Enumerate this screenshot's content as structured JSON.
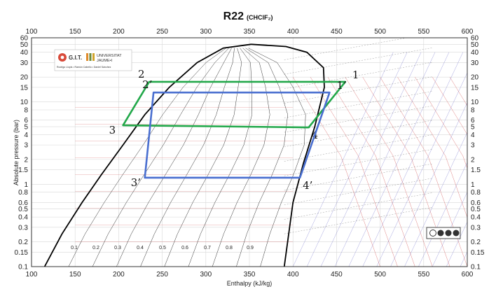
{
  "chart_data": {
    "type": "line",
    "title": "R22",
    "subtitle": "(CHClF₂)",
    "xlabel": "Enthalpy (kJ/kg)",
    "ylabel": "Absolute pressure (bar)",
    "xlim": [
      100,
      600
    ],
    "ylim": [
      0.1,
      60
    ],
    "yscale": "log",
    "grid": true,
    "x_ticks": [
      100,
      150,
      200,
      250,
      300,
      350,
      400,
      450,
      500,
      550,
      600
    ],
    "y_ticks": [
      0.1,
      0.15,
      0.2,
      0.3,
      0.4,
      0.5,
      0.6,
      0.8,
      1,
      1.5,
      2,
      3,
      4,
      5,
      6,
      8,
      10,
      15,
      20,
      30,
      40,
      50,
      60
    ],
    "y_tick_labels": [
      "0.1",
      "0.15",
      "0.2",
      "0.3",
      "0.4",
      "0.5",
      "0.6",
      "0.8",
      "1",
      "1.5",
      "2",
      "3",
      "4",
      "5",
      "6",
      "8",
      "10",
      "15",
      "20",
      "30",
      "40",
      "50",
      "60"
    ],
    "quality_labels": [
      "0.1",
      "0.2",
      "0.3",
      "0.4",
      "0.5",
      "0.6",
      "0.7",
      "0.8",
      "0.9"
    ],
    "series": [
      {
        "name": "",
        "color": "#22a84a",
        "closed": true,
        "points": [
          {
            "label": "1",
            "x": 460,
            "y": 17.5
          },
          {
            "label": "2",
            "x": 235,
            "y": 17.5
          },
          {
            "label": "3",
            "x": 205,
            "y": 5.2
          },
          {
            "label": "4",
            "x": 418,
            "y": 4.9
          }
        ]
      },
      {
        "name": "",
        "color": "#4a6fd0",
        "closed": true,
        "points": [
          {
            "label": "1’",
            "x": 442,
            "y": 13
          },
          {
            "label": "2’",
            "x": 240,
            "y": 13
          },
          {
            "label": "3’",
            "x": 230,
            "y": 1.2
          },
          {
            "label": "4’",
            "x": 408,
            "y": 1.2
          }
        ]
      }
    ]
  },
  "logo": {
    "git_text": "G.I.T.",
    "univ_line1": "UNIVERSITAT",
    "univ_line2": "JAUME•I",
    "credits": "Rodrigo Llopis • Ramón Cabello • Daniel Sánchez"
  },
  "colors": {
    "green_cycle": "#22a84a",
    "blue_cycle": "#4a6fd0",
    "saturation_dome": "#000000",
    "isotherms": "#cc3333",
    "isentropes": "#3a3ab8"
  }
}
